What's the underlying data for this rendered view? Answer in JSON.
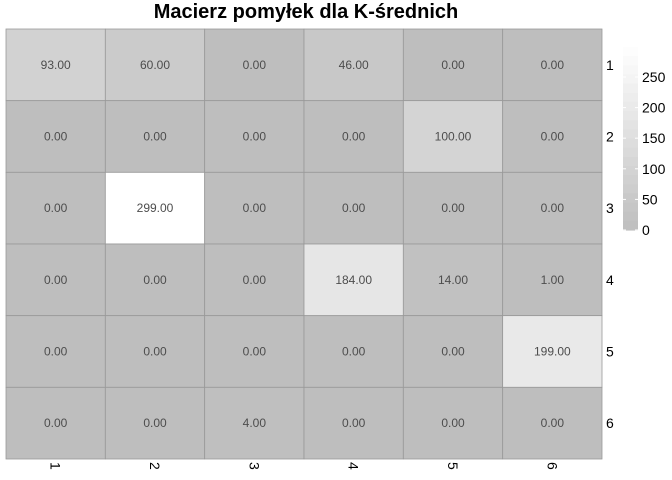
{
  "chart_data": {
    "type": "heatmap",
    "title": "Macierz pomyłek dla K-średnich",
    "x_categories": [
      "1",
      "2",
      "3",
      "4",
      "5",
      "6"
    ],
    "y_categories": [
      "1",
      "2",
      "3",
      "4",
      "5",
      "6"
    ],
    "values": [
      [
        93.0,
        60.0,
        0.0,
        46.0,
        0.0,
        0.0
      ],
      [
        0.0,
        0.0,
        0.0,
        0.0,
        100.0,
        0.0
      ],
      [
        0.0,
        299.0,
        0.0,
        0.0,
        0.0,
        0.0
      ],
      [
        0.0,
        0.0,
        0.0,
        184.0,
        14.0,
        1.0
      ],
      [
        0.0,
        0.0,
        0.0,
        0.0,
        0.0,
        199.0
      ],
      [
        0.0,
        0.0,
        4.0,
        0.0,
        0.0,
        0.0
      ]
    ],
    "value_format_decimals": 2,
    "color_scale": {
      "low": "#bebebe",
      "high": "#ffffff",
      "domain": [
        0,
        299
      ]
    },
    "legend": {
      "position": "right",
      "ticks": [
        0,
        50,
        100,
        150,
        200,
        250
      ],
      "tick_labels": [
        "0",
        "50",
        "100",
        "150",
        "200",
        "250"
      ]
    },
    "grid_color": "#999999",
    "xlabel": "",
    "ylabel": "",
    "x_tick_rotation_deg": 90
  }
}
